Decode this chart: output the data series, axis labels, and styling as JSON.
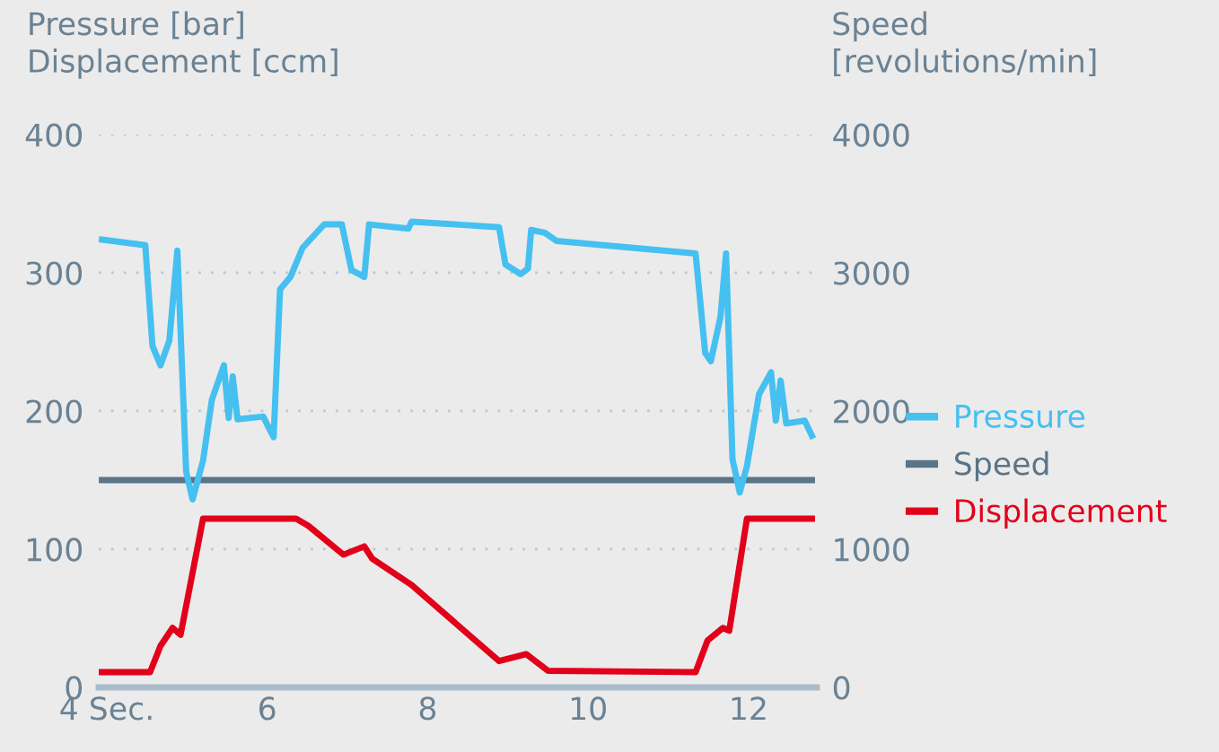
{
  "chart_data": {
    "type": "line",
    "ylabel": "Pressure [bar]\nDisplacement [ccm]",
    "y2label": "Speed\n[revolutions/min]",
    "xlim": [
      3.9,
      12.85
    ],
    "xticks": [
      {
        "value": 4,
        "label": "4 Sec."
      },
      6,
      8,
      10,
      12
    ],
    "ylim": [
      0,
      400
    ],
    "yticks": [
      0,
      100,
      200,
      300,
      400
    ],
    "y2lim": [
      0,
      4000
    ],
    "y2ticks": [
      0,
      1000,
      2000,
      3000,
      4000
    ],
    "grid": "y",
    "legend": "right",
    "line_style": "solid",
    "marker": "none",
    "series": [
      {
        "name": "Pressure",
        "color": "#45c0f0",
        "x": [
          3.94,
          4.48,
          4.57,
          4.67,
          4.78,
          4.88,
          4.99,
          5.07,
          5.2,
          5.31,
          5.46,
          5.52,
          5.57,
          5.63,
          5.95,
          6.08,
          6.16,
          6.29,
          6.44,
          6.71,
          6.93,
          7.05,
          7.21,
          7.27,
          7.76,
          7.8,
          8.89,
          8.97,
          9.16,
          9.25,
          9.29,
          9.46,
          9.61,
          11.34,
          11.46,
          11.53,
          11.65,
          11.72,
          11.8,
          11.89,
          11.98,
          12.13,
          12.28,
          12.34,
          12.4,
          12.47,
          12.7,
          12.79
        ],
        "values": [
          324,
          320,
          247,
          233,
          251,
          316,
          156,
          136,
          164,
          208,
          233,
          195,
          225,
          194,
          196,
          181,
          288,
          297,
          318,
          335,
          335,
          302,
          297,
          335,
          332,
          337,
          333,
          306,
          299,
          303,
          331,
          329,
          323,
          314,
          242,
          236,
          268,
          314,
          165,
          141,
          160,
          212,
          228,
          193,
          222,
          191,
          193,
          182
        ]
      },
      {
        "name": "Speed",
        "color": "#5a7488",
        "axis": "y2",
        "x": [
          3.94,
          12.79
        ],
        "values": [
          1500,
          1500
        ]
      },
      {
        "name": "Displacement",
        "color": "#e2001a",
        "x": [
          3.94,
          4.54,
          4.67,
          4.82,
          4.92,
          5.2,
          6.36,
          6.51,
          6.95,
          7.21,
          7.31,
          7.8,
          8.89,
          9.23,
          9.5,
          11.34,
          11.49,
          11.68,
          11.76,
          11.98,
          12.79
        ],
        "values": [
          11,
          11,
          30,
          43,
          38,
          122,
          122,
          117,
          96,
          102,
          93,
          74,
          19,
          24,
          12,
          11,
          34,
          43,
          41,
          122,
          122
        ]
      }
    ]
  }
}
